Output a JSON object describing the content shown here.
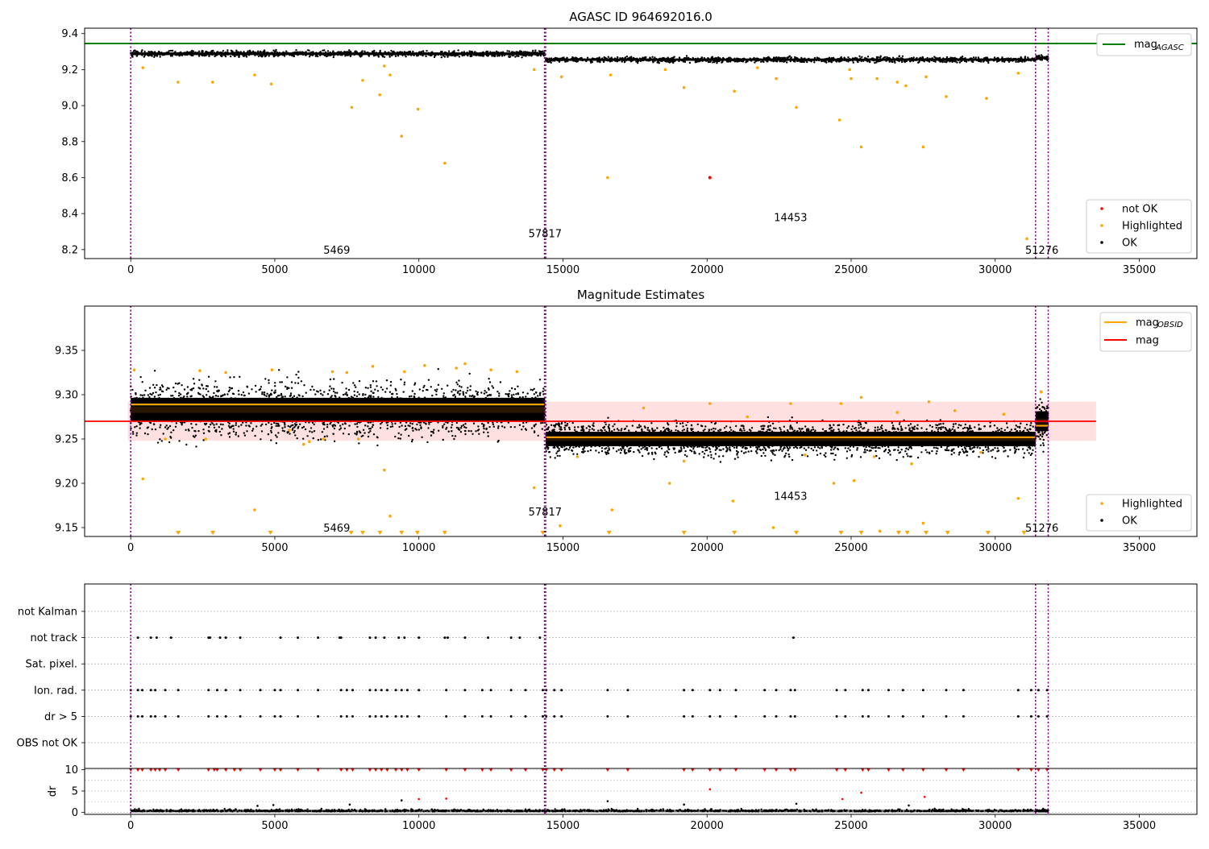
{
  "colors": {
    "ok": "#000000",
    "highlighted": "#ffa500",
    "not_ok": "#ff0000",
    "agasc_line": "#008000",
    "mag_line": "#ff0000",
    "obsid_line": "#ffa500",
    "band": "#ffdada",
    "obsid_sep": "#800080"
  },
  "chart_data": [
    {
      "type": "scatter",
      "title": "AGASC ID 964692016.0",
      "xlim": [
        -1600,
        37000
      ],
      "ylim": [
        8.15,
        9.43
      ],
      "xticks": [
        0,
        5000,
        10000,
        15000,
        20000,
        25000,
        30000,
        35000
      ],
      "yticks": [
        8.2,
        8.4,
        8.6,
        8.8,
        9.0,
        9.2,
        9.4
      ],
      "xtick_labels": [
        "0",
        "5000",
        "10000",
        "15000",
        "20000",
        "25000",
        "30000",
        "35000"
      ],
      "ytick_labels": [
        "8.2",
        "8.4",
        "8.6",
        "8.8",
        "9.0",
        "9.2",
        "9.4"
      ],
      "obsid_boundaries": [
        0,
        14360,
        14400,
        31400,
        31840
      ],
      "mag_agasc": 9.345,
      "bands": [
        {
          "x": [
            0,
            14380
          ],
          "y": 9.288,
          "spread": 0.016
        },
        {
          "x": [
            14400,
            31400
          ],
          "y": 9.255,
          "spread": 0.014
        },
        {
          "x": [
            31400,
            31840
          ],
          "y": 9.265,
          "spread": 0.012
        }
      ],
      "obsid_labels": [
        {
          "text": "5469",
          "x": 7150,
          "y": 8.2
        },
        {
          "text": "57817",
          "x": 14380,
          "y": 8.29
        },
        {
          "text": "14453",
          "x": 22900,
          "y": 8.38
        },
        {
          "text": "51276",
          "x": 31620,
          "y": 8.2
        }
      ],
      "highlighted": [
        [
          420,
          9.21
        ],
        [
          1640,
          9.13
        ],
        [
          2840,
          9.13
        ],
        [
          4300,
          9.17
        ],
        [
          4880,
          9.12
        ],
        [
          7670,
          8.99
        ],
        [
          8050,
          9.14
        ],
        [
          8640,
          9.06
        ],
        [
          8800,
          9.22
        ],
        [
          9000,
          9.17
        ],
        [
          9400,
          8.83
        ],
        [
          9970,
          8.98
        ],
        [
          10900,
          8.68
        ],
        [
          14000,
          9.2
        ],
        [
          14950,
          9.16
        ],
        [
          16550,
          8.6
        ],
        [
          16650,
          9.17
        ],
        [
          18550,
          9.2
        ],
        [
          19200,
          9.1
        ],
        [
          20950,
          9.08
        ],
        [
          21750,
          9.21
        ],
        [
          22400,
          9.15
        ],
        [
          23100,
          8.99
        ],
        [
          24600,
          8.92
        ],
        [
          24950,
          9.2
        ],
        [
          25000,
          9.15
        ],
        [
          25350,
          8.77
        ],
        [
          25900,
          9.15
        ],
        [
          26600,
          9.13
        ],
        [
          26900,
          9.11
        ],
        [
          27500,
          8.77
        ],
        [
          27600,
          9.16
        ],
        [
          28300,
          9.05
        ],
        [
          29700,
          9.04
        ],
        [
          30800,
          9.18
        ],
        [
          31100,
          8.26
        ]
      ],
      "not_ok": [
        [
          20100,
          8.6
        ]
      ],
      "legend": {
        "line_label": "mag",
        "line_sub": "AGASC",
        "items": [
          {
            "label": "not OK",
            "color": "#ff0000"
          },
          {
            "label": "Highlighted",
            "color": "#ffa500"
          },
          {
            "label": "OK",
            "color": "#000000"
          }
        ]
      }
    },
    {
      "type": "scatter",
      "title": "Magnitude Estimates",
      "xlim": [
        -1600,
        37000
      ],
      "ylim": [
        9.14,
        9.4
      ],
      "xticks": [
        0,
        5000,
        10000,
        15000,
        20000,
        25000,
        30000,
        35000
      ],
      "yticks": [
        9.15,
        9.2,
        9.25,
        9.3,
        9.35
      ],
      "xtick_labels": [
        "0",
        "5000",
        "10000",
        "15000",
        "20000",
        "25000",
        "30000",
        "35000"
      ],
      "ytick_labels": [
        "9.15",
        "9.20",
        "9.25",
        "9.30",
        "9.35"
      ],
      "obsid_boundaries": [
        0,
        14360,
        14400,
        31400,
        31840
      ],
      "mag": 9.27,
      "mag_band": [
        9.248,
        9.292
      ],
      "mag_span": [
        -100,
        33500
      ],
      "obsid_mags": [
        {
          "x": [
            0,
            14360
          ],
          "y": 9.289
        },
        {
          "x": [
            14400,
            31400
          ],
          "y": 9.252
        },
        {
          "x": [
            31400,
            31840
          ],
          "y": 9.265
        }
      ],
      "bands": [
        {
          "x": [
            0,
            14380
          ],
          "y": 9.283,
          "spread": 0.03
        },
        {
          "x": [
            14400,
            31400
          ],
          "y": 9.25,
          "spread": 0.018
        },
        {
          "x": [
            31400,
            31840
          ],
          "y": 9.27,
          "spread": 0.025
        }
      ],
      "obsid_labels": [
        {
          "text": "5469",
          "x": 7150,
          "y": 9.15
        },
        {
          "text": "57817",
          "x": 14380,
          "y": 9.168
        },
        {
          "text": "14453",
          "x": 22900,
          "y": 9.186
        },
        {
          "text": "51276",
          "x": 31620,
          "y": 9.15
        }
      ],
      "highlighted": [
        [
          120,
          9.328
        ],
        [
          420,
          9.205
        ],
        [
          1200,
          9.25
        ],
        [
          2400,
          9.327
        ],
        [
          2600,
          9.25
        ],
        [
          3300,
          9.325
        ],
        [
          4300,
          9.17
        ],
        [
          4900,
          9.328
        ],
        [
          5500,
          9.26
        ],
        [
          6000,
          9.244
        ],
        [
          6200,
          9.247
        ],
        [
          6700,
          9.25
        ],
        [
          7000,
          9.326
        ],
        [
          7500,
          9.325
        ],
        [
          7900,
          9.25
        ],
        [
          8400,
          9.332
        ],
        [
          8800,
          9.215
        ],
        [
          9000,
          9.163
        ],
        [
          9500,
          9.326
        ],
        [
          10200,
          9.333
        ],
        [
          11300,
          9.33
        ],
        [
          11600,
          9.335
        ],
        [
          12500,
          9.328
        ],
        [
          13400,
          9.326
        ],
        [
          14000,
          9.195
        ],
        [
          14900,
          9.152
        ],
        [
          15500,
          9.23
        ],
        [
          16700,
          9.17
        ],
        [
          17800,
          9.285
        ],
        [
          18700,
          9.2
        ],
        [
          19200,
          9.225
        ],
        [
          20100,
          9.29
        ],
        [
          20900,
          9.18
        ],
        [
          21400,
          9.275
        ],
        [
          22300,
          9.15
        ],
        [
          22900,
          9.29
        ],
        [
          23400,
          9.232
        ],
        [
          24400,
          9.2
        ],
        [
          24650,
          9.29
        ],
        [
          25100,
          9.203
        ],
        [
          25350,
          9.297
        ],
        [
          25800,
          9.23
        ],
        [
          26000,
          9.146
        ],
        [
          26600,
          9.28
        ],
        [
          27100,
          9.222
        ],
        [
          27500,
          9.155
        ],
        [
          27700,
          9.292
        ],
        [
          28600,
          9.282
        ],
        [
          29500,
          9.235
        ],
        [
          30300,
          9.278
        ],
        [
          30800,
          9.183
        ],
        [
          31600,
          9.303
        ]
      ],
      "below_axis_x": [
        1650,
        2850,
        4850,
        7650,
        8050,
        8650,
        9400,
        9950,
        10900,
        14300,
        16600,
        19200,
        20950,
        23100,
        24650,
        25350,
        26650,
        26950,
        27600,
        28350,
        29750,
        31000
      ],
      "legend": {
        "items": [
          {
            "label": "mag",
            "sub": "OBSID",
            "color": "#ffa500",
            "kind": "line"
          },
          {
            "label": "mag",
            "sub": "",
            "color": "#ff0000",
            "kind": "line"
          },
          {
            "label": "Highlighted",
            "color": "#ffa500",
            "kind": "dot"
          },
          {
            "label": "OK",
            "color": "#000000",
            "kind": "dot"
          }
        ]
      }
    },
    {
      "type": "scatter",
      "title": "",
      "xlim": [
        -1600,
        37000
      ],
      "xticks": [
        0,
        5000,
        10000,
        15000,
        20000,
        25000,
        30000,
        35000
      ],
      "xtick_labels": [
        "0",
        "5000",
        "10000",
        "15000",
        "20000",
        "25000",
        "30000",
        "35000"
      ],
      "obsid_boundaries": [
        0,
        14360,
        14400,
        31400,
        31840
      ],
      "flags": [
        "not Kalman",
        "not track",
        "Sat. pixel.",
        "Ion. rad.",
        "dr > 5",
        "OBS not OK"
      ],
      "flag_events": {
        "not track": [
          250,
          700,
          900,
          1400,
          2700,
          2750,
          3100,
          3300,
          3800,
          5200,
          5800,
          6500,
          7250,
          7300,
          8300,
          8500,
          8800,
          9300,
          9500,
          10000,
          10900,
          11000,
          11600,
          12400,
          13200,
          13500,
          14200,
          23000
        ],
        "Ion. rad.": [
          0,
          250,
          400,
          700,
          850,
          1200,
          1650,
          2700,
          3000,
          3300,
          3800,
          4500,
          5000,
          5200,
          5800,
          6500,
          7300,
          7500,
          7700,
          8300,
          8500,
          8700,
          8900,
          9200,
          9400,
          9600,
          10000,
          10950,
          11600,
          12200,
          12500,
          13200,
          13700,
          14300,
          14420,
          14700,
          14950,
          16550,
          17250,
          19200,
          19500,
          20100,
          20450,
          21000,
          22000,
          22400,
          22900,
          23050,
          24500,
          24800,
          25400,
          25600,
          26300,
          26800,
          27500,
          28300,
          28900,
          30800,
          31250,
          31500,
          31800
        ],
        "dr > 5": [
          0,
          250,
          400,
          700,
          850,
          1200,
          1650,
          2700,
          3000,
          3300,
          3800,
          4500,
          5000,
          5200,
          5800,
          6500,
          7300,
          7500,
          7700,
          8300,
          8500,
          8700,
          8900,
          9200,
          9400,
          9600,
          10000,
          10950,
          11600,
          12200,
          12500,
          13200,
          13700,
          14300,
          14420,
          14700,
          14950,
          16550,
          17250,
          19200,
          19500,
          20100,
          20450,
          21000,
          22000,
          22400,
          22900,
          23050,
          24500,
          24800,
          25400,
          25600,
          26300,
          26800,
          27500,
          28300,
          28900,
          30800,
          31250,
          31500,
          31800
        ]
      },
      "dr": {
        "ylabel": "dr",
        "ylim": [
          -0.5,
          10.3
        ],
        "yticks": [
          0,
          5,
          10
        ],
        "ytick_labels": [
          "0",
          "5",
          "10"
        ],
        "capped_x": [
          0,
          250,
          400,
          700,
          850,
          1000,
          1200,
          1650,
          2700,
          2900,
          3000,
          3300,
          3600,
          3800,
          4500,
          5000,
          5200,
          5800,
          6500,
          7300,
          7500,
          7700,
          8300,
          8500,
          8700,
          8900,
          9200,
          9400,
          9600,
          10000,
          10950,
          11600,
          12200,
          12500,
          13200,
          13700,
          14300,
          14420,
          14700,
          14950,
          16550,
          17250,
          19200,
          19500,
          20100,
          20450,
          21000,
          22000,
          22400,
          22900,
          23050,
          24500,
          24800,
          25400,
          25600,
          26300,
          26800,
          27500,
          28300,
          28900,
          30800,
          31250,
          31500,
          31800
        ],
        "mid_red": [
          [
            10000,
            3.1
          ],
          [
            10950,
            3.2
          ],
          [
            20100,
            5.4
          ],
          [
            24700,
            3.1
          ],
          [
            25350,
            4.6
          ],
          [
            27550,
            3.6
          ]
        ],
        "mid_black": [
          [
            4400,
            1.5
          ],
          [
            4950,
            1.7
          ],
          [
            7600,
            1.8
          ],
          [
            9400,
            2.8
          ],
          [
            16550,
            2.6
          ],
          [
            19200,
            1.8
          ],
          [
            23100,
            2.0
          ],
          [
            27000,
            1.6
          ]
        ]
      }
    }
  ]
}
